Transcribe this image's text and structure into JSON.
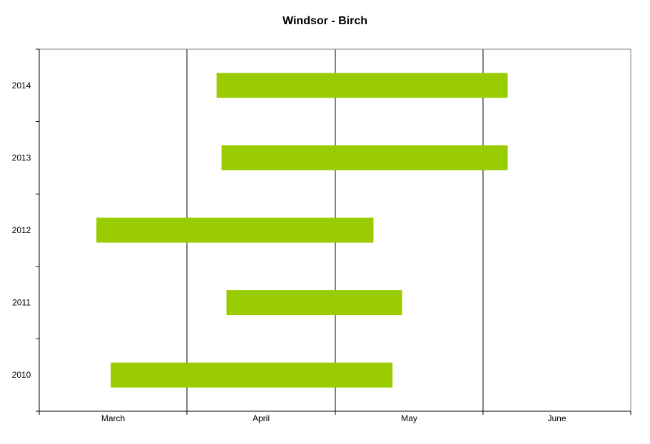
{
  "chart_data": {
    "type": "gantt",
    "title": "Windsor - Birch",
    "xlabel": "",
    "ylabel": "",
    "x_axis": {
      "type": "date",
      "range": [
        "03-01",
        "06-30"
      ],
      "month_labels": [
        "March",
        "April",
        "May",
        "June"
      ],
      "grid": "vertical lines at month boundaries"
    },
    "categories": [
      "2014",
      "2013",
      "2012",
      "2011",
      "2010"
    ],
    "bars": [
      {
        "year": "2014",
        "start": "04-07",
        "end": "06-06"
      },
      {
        "year": "2013",
        "start": "04-08",
        "end": "06-06"
      },
      {
        "year": "2012",
        "start": "03-13",
        "end": "05-09"
      },
      {
        "year": "2011",
        "start": "04-09",
        "end": "05-15"
      },
      {
        "year": "2010",
        "start": "03-16",
        "end": "05-13"
      }
    ],
    "colors": {
      "bar": "#99cc00",
      "axis": "#000000",
      "frame": "#808080"
    }
  }
}
